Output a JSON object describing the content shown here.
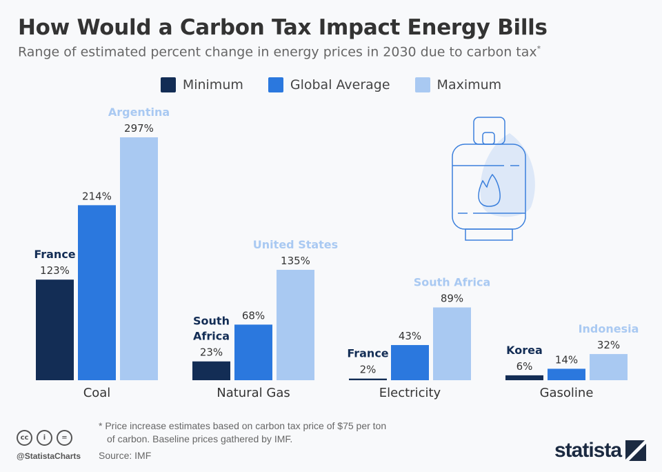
{
  "title": "How Would a Carbon Tax Impact Energy Bills",
  "subtitle": "Range of estimated percent change in energy prices in 2030 due to carbon tax",
  "subtitle_mark": "*",
  "colors": {
    "minimum": "#132d55",
    "average": "#2b78de",
    "maximum": "#a9c9f2"
  },
  "chart_data": {
    "type": "bar",
    "categories": [
      "Coal",
      "Natural Gas",
      "Electricity",
      "Gasoline"
    ],
    "series": [
      {
        "name": "Minimum",
        "values": [
          123,
          23,
          2,
          6
        ],
        "countries": [
          "France",
          "South Africa",
          "France",
          "Korea"
        ]
      },
      {
        "name": "Global Average",
        "values": [
          214,
          68,
          43,
          14
        ]
      },
      {
        "name": "Maximum",
        "values": [
          297,
          135,
          89,
          32
        ],
        "countries": [
          "Argentina",
          "United States",
          "South Africa",
          "Indonesia"
        ]
      }
    ],
    "value_suffix": "%",
    "legend": "top",
    "grid": false,
    "ylim": [
      0,
      300
    ]
  },
  "footnote_line1": "* Price increase estimates based on carbon tax price of $75 per ton",
  "footnote_line2": "of carbon. Baseline prices gathered by IMF.",
  "source": "Source: IMF",
  "handle": "@StatistaCharts",
  "logo": "statista",
  "icon": "gas-cylinder-icon"
}
